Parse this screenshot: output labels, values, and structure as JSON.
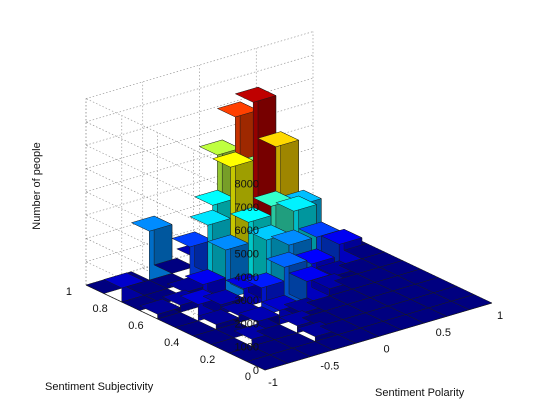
{
  "chart_data": {
    "type": "bar3d",
    "title": "",
    "xlabel": "Sentiment Polarity",
    "ylabel": "Sentiment Subjectivity",
    "zlabel": "Number of people",
    "x_ticks": [
      "-1",
      "-0.5",
      "0",
      "0.5",
      "1"
    ],
    "y_ticks": [
      "0",
      "0.2",
      "0.4",
      "0.6",
      "0.8",
      "1"
    ],
    "z_ticks": [
      "0",
      "1000",
      "2000",
      "3000",
      "4000",
      "5000",
      "6000",
      "7000",
      "8000"
    ],
    "xlim": [
      -1,
      1
    ],
    "ylim": [
      0,
      1
    ],
    "zlim": [
      0,
      8000
    ],
    "grid": true,
    "colormap": "jet",
    "x": [
      -0.9,
      -0.7,
      -0.5,
      -0.3,
      -0.1,
      0.1,
      0.3,
      0.5,
      0.7,
      0.9
    ],
    "y": [
      0.05,
      0.15,
      0.25,
      0.35,
      0.45,
      0.55,
      0.65,
      0.75,
      0.85,
      0.95
    ],
    "values": [
      [
        0,
        0,
        0,
        0,
        0,
        0,
        0,
        0,
        0,
        0
      ],
      [
        0,
        0,
        0,
        200,
        0,
        0,
        0,
        0,
        0,
        0
      ],
      [
        0,
        300,
        0,
        300,
        0,
        0,
        0,
        0,
        0,
        0
      ],
      [
        0,
        0,
        400,
        600,
        200,
        0,
        0,
        0,
        0,
        0
      ],
      [
        0,
        200,
        300,
        1200,
        1800,
        900,
        300,
        0,
        0,
        0
      ],
      [
        0,
        700,
        400,
        800,
        2600,
        2100,
        1000,
        200,
        0,
        0
      ],
      [
        200,
        300,
        900,
        2100,
        3000,
        3400,
        2900,
        1500,
        900,
        0
      ],
      [
        0,
        0,
        200,
        2800,
        5000,
        7500,
        5300,
        2500,
        200,
        0
      ],
      [
        600,
        0,
        0,
        1500,
        3000,
        6500,
        4000,
        600,
        0,
        0
      ],
      [
        0,
        0,
        2100,
        0,
        400,
        4500,
        1500,
        400,
        0,
        0
      ]
    ]
  }
}
